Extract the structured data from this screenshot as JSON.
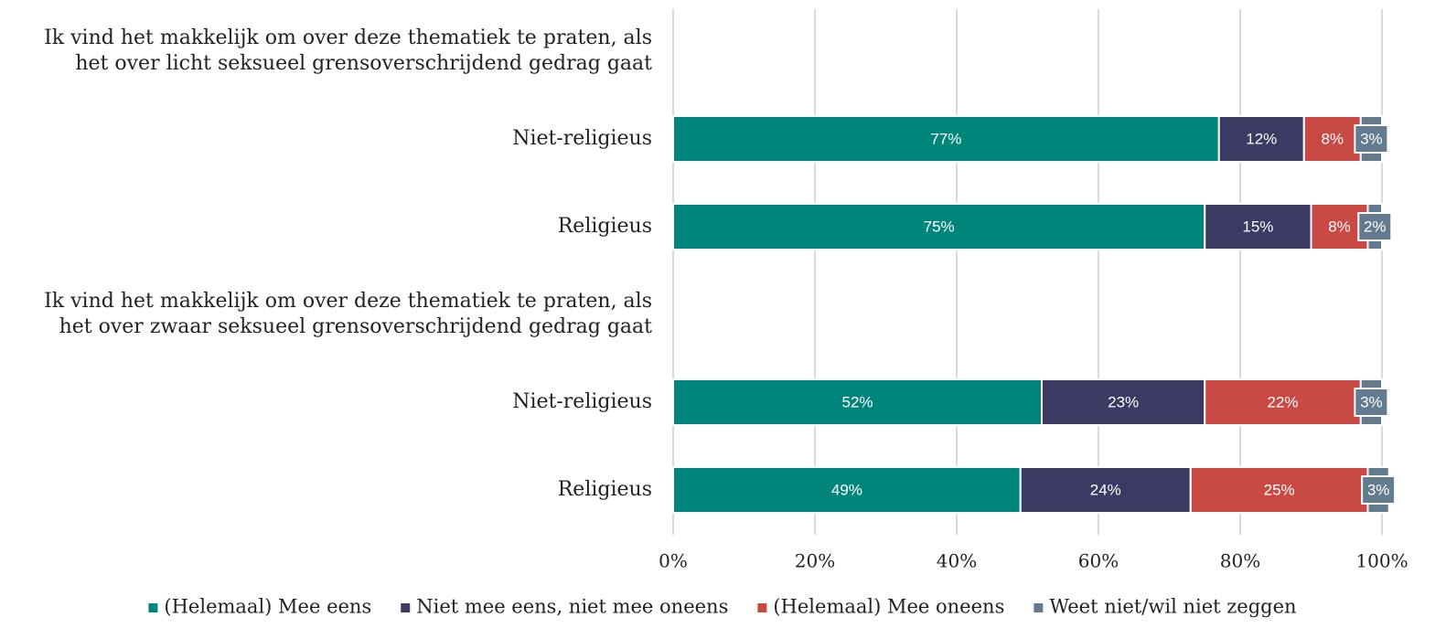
{
  "chart_data": {
    "type": "stacked-bar-horizontal",
    "categories": [
      "Ik vind het makkelijk om over deze thematiek te praten, als\nhet over licht seksueel grensoverschrijdend gedrag gaat",
      "Niet-religieus",
      "Religieus",
      "Ik vind het makkelijk om over deze thematiek te praten, als\nhet over zwaar seksueel grensoverschrijdend gedrag gaat",
      "Niet-religieus",
      "Religieus"
    ],
    "series": [
      {
        "name": "(Helemaal) Mee eens",
        "color": "#00857a",
        "values": [
          null,
          77,
          75,
          null,
          52,
          49
        ],
        "value_labels": [
          null,
          "77%",
          "75%",
          null,
          "52%",
          "49%"
        ]
      },
      {
        "name": "Niet mee eens, niet mee oneens",
        "color": "#3a3a62",
        "values": [
          null,
          12,
          15,
          null,
          23,
          24
        ],
        "value_labels": [
          null,
          "12%",
          "15%",
          null,
          "23%",
          "24%"
        ]
      },
      {
        "name": "(Helemaal) Mee oneens",
        "color": "#c94a45",
        "values": [
          null,
          8,
          8,
          null,
          22,
          25
        ],
        "value_labels": [
          null,
          "8%",
          "8%",
          null,
          "22%",
          "25%"
        ]
      },
      {
        "name": "Weet niet/wil niet zeggen",
        "color": "#627b8e",
        "values": [
          null,
          3,
          2,
          null,
          3,
          3
        ],
        "value_labels": [
          null,
          "3%",
          "2%",
          null,
          "3%",
          "3%"
        ]
      }
    ],
    "xlim": [
      0,
      100
    ],
    "xticks": [
      {
        "value": 0,
        "label": "0%"
      },
      {
        "value": 20,
        "label": "20%"
      },
      {
        "value": 40,
        "label": "40%"
      },
      {
        "value": 60,
        "label": "60%"
      },
      {
        "value": 80,
        "label": "80%"
      },
      {
        "value": 100,
        "label": "100%"
      }
    ],
    "grid": true,
    "legend": "bottom"
  }
}
